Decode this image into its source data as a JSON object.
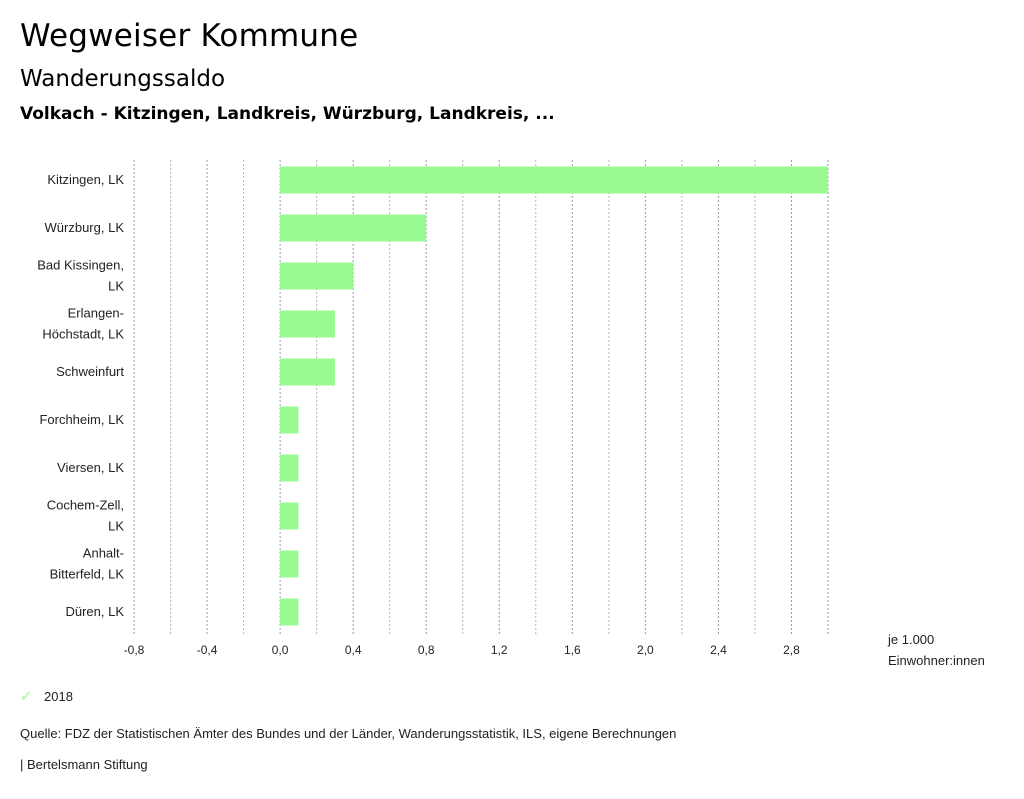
{
  "header": {
    "title": "Wegweiser Kommune",
    "subtitle": "Wanderungssaldo",
    "region": "Volkach - Kitzingen, Landkreis, Würzburg, Landkreis, ..."
  },
  "chart_data": {
    "type": "bar",
    "orientation": "horizontal",
    "categories": [
      [
        "Kitzingen, LK"
      ],
      [
        "Würzburg, LK"
      ],
      [
        "Bad Kissingen,",
        "LK"
      ],
      [
        "Erlangen-",
        "Höchstadt, LK"
      ],
      [
        "Schweinfurt"
      ],
      [
        "Forchheim, LK"
      ],
      [
        "Viersen, LK"
      ],
      [
        "Cochem-Zell,",
        "LK"
      ],
      [
        "Anhalt-",
        "Bitterfeld, LK"
      ],
      [
        "Düren, LK"
      ]
    ],
    "series": [
      {
        "name": "2018",
        "values": [
          3.0,
          0.8,
          0.4,
          0.3,
          0.3,
          0.1,
          0.1,
          0.1,
          0.1,
          0.1
        ]
      }
    ],
    "xlim": [
      -0.8,
      3.0
    ],
    "xticks": [
      -0.8,
      -0.4,
      0.0,
      0.4,
      0.8,
      1.2,
      1.6,
      2.0,
      2.4,
      2.8
    ],
    "xtick_labels": [
      "-0,8",
      "-0,4",
      "0,0",
      "0,4",
      "0,8",
      "1,2",
      "1,6",
      "2,0",
      "2,4",
      "2,8"
    ],
    "xlabel": "je 1.000 Einwohner:innen",
    "grid": true,
    "bar_color": "#9AFA92"
  },
  "unit_label": {
    "line1": "je 1.000",
    "line2": "Einwohner:innen"
  },
  "legend": {
    "label": "2018",
    "color": "#9AFA92"
  },
  "source": "Quelle: FDZ der Statistischen Ämter des Bundes und der Länder, Wanderungsstatistik, ILS, eigene Berechnungen",
  "brand": "| Bertelsmann Stiftung"
}
